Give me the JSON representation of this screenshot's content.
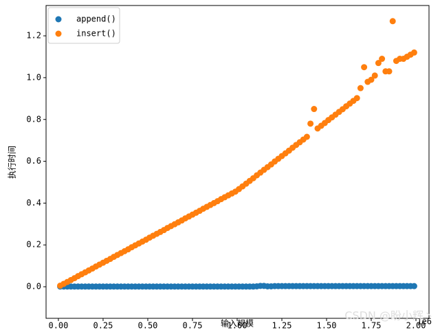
{
  "chart_data": {
    "type": "scatter",
    "xlabel": "输入规模",
    "ylabel": "执行时间",
    "x_offset_label": "1e6",
    "watermark": "CSDN @盼小辉丶",
    "legend": "upper left",
    "xlim": [
      -69000,
      2073000
    ],
    "ylim": [
      -0.151,
      1.345
    ],
    "xticks": [
      {
        "value": 0,
        "label": "0.00"
      },
      {
        "value": 250000,
        "label": "0.25"
      },
      {
        "value": 500000,
        "label": "0.50"
      },
      {
        "value": 750000,
        "label": "0.75"
      },
      {
        "value": 1000000,
        "label": "1.00"
      },
      {
        "value": 1250000,
        "label": "1.25"
      },
      {
        "value": 1500000,
        "label": "1.50"
      },
      {
        "value": 1750000,
        "label": "1.75"
      },
      {
        "value": 2000000,
        "label": "2.00"
      }
    ],
    "yticks": [
      {
        "value": 0,
        "label": "0.0"
      },
      0.2,
      0.4,
      0.6,
      0.8,
      {
        "value": 1,
        "label": "1.0"
      },
      1.2
    ],
    "x": [
      10000,
      30000,
      50000,
      70000,
      90000,
      110000,
      130000,
      150000,
      170000,
      190000,
      210000,
      230000,
      250000,
      270000,
      290000,
      310000,
      330000,
      350000,
      370000,
      390000,
      410000,
      430000,
      450000,
      470000,
      490000,
      510000,
      530000,
      550000,
      570000,
      590000,
      610000,
      630000,
      650000,
      670000,
      690000,
      710000,
      730000,
      750000,
      770000,
      790000,
      810000,
      830000,
      850000,
      870000,
      890000,
      910000,
      930000,
      950000,
      970000,
      990000,
      1010000,
      1030000,
      1050000,
      1070000,
      1090000,
      1110000,
      1130000,
      1150000,
      1170000,
      1190000,
      1210000,
      1230000,
      1250000,
      1270000,
      1290000,
      1310000,
      1330000,
      1350000,
      1370000,
      1390000,
      1410000,
      1430000,
      1450000,
      1470000,
      1490000,
      1510000,
      1530000,
      1550000,
      1570000,
      1590000,
      1610000,
      1630000,
      1650000,
      1670000,
      1690000,
      1710000,
      1730000,
      1750000,
      1770000,
      1790000,
      1810000,
      1830000,
      1850000,
      1870000,
      1890000,
      1910000,
      1930000,
      1950000,
      1970000,
      1990000
    ],
    "series": [
      {
        "name": "append()",
        "color": "#1f77b4",
        "values": [
          0.001,
          0.001,
          0.001,
          0.001,
          0.001,
          0.001,
          0.001,
          0.001,
          0.001,
          0.001,
          0.001,
          0.001,
          0.001,
          0.001,
          0.001,
          0.001,
          0.001,
          0.001,
          0.001,
          0.001,
          0.001,
          0.001,
          0.001,
          0.001,
          0.001,
          0.001,
          0.001,
          0.001,
          0.001,
          0.001,
          0.001,
          0.001,
          0.001,
          0.001,
          0.001,
          0.001,
          0.001,
          0.001,
          0.001,
          0.001,
          0.001,
          0.001,
          0.001,
          0.001,
          0.001,
          0.001,
          0.001,
          0.001,
          0.001,
          0.001,
          0.001,
          0.001,
          0.001,
          0.001,
          0.001,
          0.002,
          0.004,
          0.004,
          0.002,
          0.002,
          0.003,
          0.003,
          0.003,
          0.003,
          0.003,
          0.003,
          0.003,
          0.003,
          0.003,
          0.003,
          0.003,
          0.003,
          0.003,
          0.003,
          0.003,
          0.003,
          0.003,
          0.003,
          0.003,
          0.003,
          0.003,
          0.003,
          0.003,
          0.003,
          0.003,
          0.003,
          0.003,
          0.003,
          0.003,
          0.003,
          0.003,
          0.003,
          0.003,
          0.003,
          0.003,
          0.003,
          0.003,
          0.003,
          0.003,
          0.003
        ]
      },
      {
        "name": "insert()",
        "color": "#ff7f0e",
        "values": [
          0.005,
          0.014,
          0.023,
          0.032,
          0.041,
          0.051,
          0.06,
          0.069,
          0.078,
          0.087,
          0.097,
          0.106,
          0.115,
          0.124,
          0.133,
          0.143,
          0.152,
          0.161,
          0.17,
          0.179,
          0.189,
          0.198,
          0.207,
          0.216,
          0.225,
          0.235,
          0.244,
          0.253,
          0.262,
          0.271,
          0.281,
          0.29,
          0.299,
          0.308,
          0.317,
          0.327,
          0.336,
          0.345,
          0.354,
          0.363,
          0.373,
          0.382,
          0.391,
          0.4,
          0.409,
          0.419,
          0.428,
          0.437,
          0.446,
          0.455,
          0.467,
          0.48,
          0.493,
          0.506,
          0.519,
          0.533,
          0.546,
          0.559,
          0.572,
          0.585,
          0.599,
          0.612,
          0.625,
          0.638,
          0.651,
          0.665,
          0.678,
          0.691,
          0.704,
          0.717,
          0.78,
          0.85,
          0.757,
          0.77,
          0.783,
          0.797,
          0.81,
          0.823,
          0.836,
          0.849,
          0.863,
          0.876,
          0.889,
          0.902,
          0.95,
          1.05,
          0.98,
          0.99,
          1.01,
          1.07,
          1.09,
          1.03,
          1.03,
          1.27,
          1.08,
          1.09,
          1.09,
          1.1,
          1.11,
          1.12
        ]
      }
    ]
  }
}
